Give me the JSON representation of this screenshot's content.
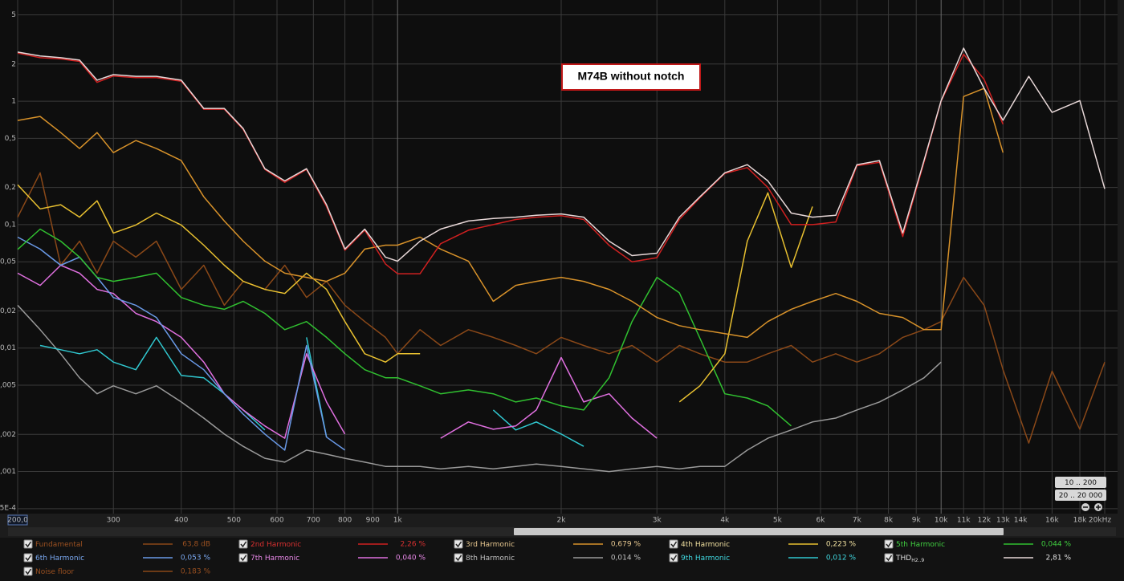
{
  "chart_data": {
    "type": "line",
    "log_x": true,
    "log_y": true,
    "grid": true,
    "annotation": "M74B without notch",
    "xlim": [
      200,
      20000
    ],
    "ylim": [
      0.00047,
      6.6
    ],
    "xticks": [
      {
        "value": 200,
        "label": "200,0"
      },
      300,
      400,
      500,
      600,
      700,
      800,
      900,
      {
        "value": 1000,
        "label": "1k"
      },
      {
        "value": 2000,
        "label": "2k"
      },
      {
        "value": 3000,
        "label": "3k"
      },
      {
        "value": 4000,
        "label": "4k"
      },
      {
        "value": 5000,
        "label": "5k"
      },
      {
        "value": 6000,
        "label": "6k"
      },
      {
        "value": 7000,
        "label": "7k"
      },
      {
        "value": 8000,
        "label": "8k"
      },
      {
        "value": 9000,
        "label": "9k"
      },
      {
        "value": 10000,
        "label": "10k"
      },
      {
        "value": 11000,
        "label": "11k"
      },
      {
        "value": 12000,
        "label": "12k"
      },
      {
        "value": 13000,
        "label": "13k"
      },
      {
        "value": 14000,
        "label": "14k"
      },
      {
        "value": 16000,
        "label": "16k"
      },
      {
        "value": 18000,
        "label": "18k"
      },
      {
        "value": 20000,
        "label": "20kHz"
      }
    ],
    "yticks": [
      5,
      2,
      1,
      {
        "value": 0.5,
        "label": "0,5"
      },
      {
        "value": 0.2,
        "label": "0,2"
      },
      {
        "value": 0.1,
        "label": "0,1"
      },
      {
        "value": 0.05,
        "label": "0,05"
      },
      {
        "value": 0.02,
        "label": "0,02"
      },
      {
        "value": 0.01,
        "label": "0,01"
      },
      {
        "value": 0.005,
        "label": "0,005"
      },
      {
        "value": 0.002,
        "label": "0,002"
      },
      {
        "value": 0.001,
        "label": "0,001"
      },
      {
        "value": 0.0005,
        "label": "5E-4"
      }
    ],
    "x": [
      200,
      220,
      240,
      260,
      280,
      300,
      330,
      360,
      400,
      440,
      480,
      520,
      570,
      620,
      680,
      740,
      800,
      870,
      950,
      1000,
      1100,
      1200,
      1350,
      1500,
      1650,
      1800,
      2000,
      2200,
      2450,
      2700,
      3000,
      3300,
      3600,
      4000,
      4400,
      4800,
      5300,
      5800,
      6400,
      7000,
      7700,
      8500,
      9300,
      10000,
      11000,
      12000,
      13000,
      14500,
      16000,
      18000,
      20000
    ],
    "series": [
      {
        "name": "Fundamental",
        "color": "#8a4818",
        "text_color": "#9a5020",
        "legend_value": "63,8 dB"
      },
      {
        "name": "2nd Harmonic",
        "color": "#d02020",
        "text_color": "#d83030",
        "legend_value": "2,26 %",
        "values": [
          2.45,
          2.25,
          2.2,
          2.1,
          1.42,
          1.6,
          1.55,
          1.55,
          1.45,
          0.86,
          0.86,
          0.59,
          0.28,
          0.22,
          0.28,
          0.14,
          0.062,
          0.09,
          0.048,
          0.04,
          0.04,
          0.07,
          0.09,
          0.1,
          0.11,
          0.115,
          0.118,
          0.11,
          0.068,
          0.05,
          0.054,
          0.11,
          0.165,
          0.26,
          0.29,
          0.2,
          0.1,
          0.1,
          0.105,
          0.3,
          0.32,
          0.08,
          0.32,
          1.0,
          2.4,
          1.5,
          0.65,
          null,
          null,
          null,
          null
        ]
      },
      {
        "name": "3rd Harmonic",
        "color": "#d8922a",
        "text_color": "#e8c890",
        "legend_value": "0,679 %",
        "values": [
          0.698,
          0.752,
          0.557,
          0.413,
          0.557,
          0.383,
          0.48,
          0.413,
          0.33,
          0.168,
          0.107,
          0.0735,
          0.0506,
          0.0404,
          0.0374,
          0.0347,
          0.0404,
          0.0633,
          0.0682,
          0.0682,
          0.0792,
          0.0633,
          0.0506,
          0.0239,
          0.0322,
          0.0347,
          0.0374,
          0.0347,
          0.0299,
          0.0239,
          0.0177,
          0.0152,
          0.0141,
          0.0131,
          0.0122,
          0.0164,
          0.0206,
          0.0239,
          0.0277,
          0.0239,
          0.0191,
          0.0177,
          0.0141,
          0.0141,
          1.09,
          1.27,
          0.383,
          null,
          null,
          null,
          null
        ]
      },
      {
        "name": "4th Harmonic",
        "color": "#e8c030",
        "text_color": "#f0e0a0",
        "legend_value": "0,223 %",
        "values": [
          0.21,
          0.134,
          0.145,
          0.115,
          0.156,
          0.0855,
          0.0993,
          0.124,
          0.0993,
          0.0682,
          0.0469,
          0.0347,
          0.0299,
          0.0277,
          0.0404,
          0.0299,
          0.0164,
          0.009,
          0.0077,
          0.009,
          0.009,
          null,
          null,
          null,
          null,
          null,
          null,
          null,
          null,
          null,
          null,
          0.00366,
          0.00494,
          0.009,
          0.0735,
          0.181,
          0.045,
          0.14,
          null,
          null,
          null,
          null,
          null,
          null,
          null,
          null,
          null,
          null,
          null,
          null,
          null
        ]
      },
      {
        "name": "5th Harmonic",
        "color": "#30c030",
        "text_color": "#40d040",
        "legend_value": "0,044 %",
        "values": [
          0.063,
          0.092,
          0.0735,
          0.0545,
          0.0374,
          0.0347,
          0.0374,
          0.0404,
          0.0257,
          0.0222,
          0.0206,
          0.0239,
          0.0191,
          0.0141,
          0.0164,
          0.0122,
          0.009,
          0.00668,
          0.00575,
          0.00575,
          0.00494,
          0.00426,
          0.00458,
          0.00426,
          0.00366,
          0.00394,
          0.0034,
          0.00315,
          0.00575,
          0.0164,
          0.0374,
          0.028,
          0.012,
          0.00426,
          0.00394,
          0.0034,
          0.00234,
          null,
          null,
          null,
          null,
          null,
          null,
          null,
          null,
          null,
          null,
          null,
          null,
          null,
          null
        ]
      },
      {
        "name": "6th Harmonic",
        "color": "#6a9ae8",
        "text_color": "#7aa8f0",
        "legend_value": "0,053 %",
        "values": [
          0.0792,
          0.0633,
          0.0469,
          0.0545,
          0.0374,
          0.0257,
          0.0222,
          0.0177,
          0.009,
          0.00668,
          0.00426,
          0.00292,
          0.00201,
          0.00149,
          0.0105,
          0.0019,
          0.00149,
          null,
          null,
          null,
          null,
          null,
          null,
          null,
          null,
          null,
          null,
          null,
          null,
          null,
          null,
          null,
          null,
          null,
          null,
          null,
          null,
          null,
          null,
          null,
          null,
          null,
          null,
          null,
          null,
          null,
          null,
          null,
          null,
          null,
          null
        ]
      },
      {
        "name": "7th Harmonic",
        "color": "#e070e0",
        "text_color": "#e888e8",
        "legend_value": "0,040 %",
        "values": [
          0.0404,
          0.0322,
          0.0469,
          0.0404,
          0.0299,
          0.0277,
          0.0191,
          0.0164,
          0.0122,
          0.0077,
          0.00426,
          0.00315,
          0.00234,
          0.00186,
          0.009,
          0.00366,
          0.00201,
          null,
          null,
          null,
          null,
          0.00186,
          0.00252,
          0.0022,
          0.00234,
          0.00315,
          0.00838,
          0.00366,
          0.00426,
          0.00271,
          0.00186,
          null,
          null,
          null,
          null,
          null,
          null,
          null,
          null,
          null,
          null,
          null,
          null,
          null,
          null,
          null,
          null,
          null,
          null,
          null,
          null
        ]
      },
      {
        "name": "8th Harmonic",
        "color": "#9a9a9a",
        "text_color": "#c0c0c0",
        "legend_value": "0,014 %",
        "values": [
          0.0222,
          0.0141,
          0.009,
          0.00574,
          0.00426,
          0.00494,
          0.00426,
          0.00494,
          0.00366,
          0.00271,
          0.00201,
          0.0016,
          0.00128,
          0.00119,
          0.00149,
          0.00138,
          0.00128,
          0.00119,
          0.0011,
          0.0011,
          0.0011,
          0.00105,
          0.0011,
          0.00105,
          0.0011,
          0.00115,
          0.0011,
          0.00105,
          0.001,
          0.00105,
          0.0011,
          0.00105,
          0.0011,
          0.0011,
          0.00149,
          0.00186,
          0.00217,
          0.00252,
          0.00271,
          0.00315,
          0.00366,
          0.00458,
          0.00574,
          0.0077,
          null,
          null,
          null,
          null,
          null,
          null,
          null
        ]
      },
      {
        "name": "9th Harmonic",
        "color": "#30c8d0",
        "text_color": "#40d8e0",
        "legend_value": "0,012 %",
        "values": [
          null,
          0.0105,
          0.0097,
          0.009,
          0.0097,
          0.0077,
          0.00668,
          0.0122,
          0.006,
          0.00574,
          0.00426,
          0.00315,
          0.00217,
          null,
          0.0122,
          0.0019,
          null,
          null,
          null,
          null,
          null,
          null,
          null,
          0.00315,
          0.00217,
          0.00252,
          0.00201,
          0.0016,
          null,
          null,
          null,
          null,
          null,
          null,
          null,
          null,
          null,
          null,
          null,
          null,
          null,
          null,
          null,
          null,
          null,
          null,
          null,
          null,
          null,
          null,
          null
        ]
      },
      {
        "name": "THD",
        "name_sub": "H2..9",
        "color": "#e8d8d8",
        "text_color": "#e0e0e0",
        "legend_value": "2,81 %",
        "values": [
          2.5,
          2.32,
          2.25,
          2.15,
          1.48,
          1.64,
          1.59,
          1.59,
          1.48,
          0.874,
          0.874,
          0.6,
          0.284,
          0.226,
          0.284,
          0.145,
          0.0633,
          0.092,
          0.0545,
          0.0506,
          0.0735,
          0.092,
          0.107,
          0.112,
          0.115,
          0.119,
          0.122,
          0.115,
          0.0735,
          0.0561,
          0.0587,
          0.115,
          0.168,
          0.263,
          0.306,
          0.226,
          0.124,
          0.115,
          0.119,
          0.306,
          0.33,
          0.0855,
          0.33,
          1.01,
          2.69,
          1.27,
          0.7,
          1.59,
          0.81,
          1.01,
          0.195
        ]
      },
      {
        "name": "Noise floor",
        "color": "#8a4818",
        "text_color": "#9a5020",
        "legend_value": "0,183 %",
        "values": [
          0.115,
          0.263,
          0.0469,
          0.0735,
          0.0404,
          0.0735,
          0.0545,
          0.0735,
          0.0299,
          0.0469,
          0.0222,
          0.0347,
          0.0299,
          0.0469,
          0.0257,
          0.0347,
          0.0222,
          0.0164,
          0.0122,
          0.009,
          0.0141,
          0.0105,
          0.0141,
          0.0122,
          0.0105,
          0.009,
          0.0122,
          0.0105,
          0.009,
          0.0105,
          0.0077,
          0.0105,
          0.009,
          0.0077,
          0.0077,
          0.009,
          0.0105,
          0.0077,
          0.009,
          0.0077,
          0.009,
          0.0122,
          0.0141,
          0.0164,
          0.0374,
          0.0222,
          0.00668,
          0.0017,
          0.0065,
          0.0022,
          0.0077
        ]
      }
    ]
  },
  "controls": {
    "range_buttons": [
      "10 .. 200",
      "20 .. 20 000"
    ]
  }
}
